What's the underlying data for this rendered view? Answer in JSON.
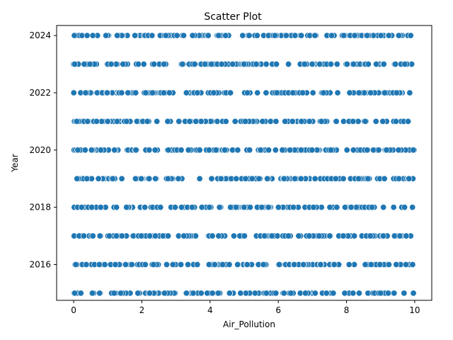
{
  "chart_data": {
    "type": "scatter",
    "title": "Scatter Plot",
    "xlabel": "Air_Pollution",
    "ylabel": "Year",
    "xlim": [
      -0.5,
      10.5
    ],
    "ylim": [
      2014.75,
      2024.35
    ],
    "xticks": [
      0,
      2,
      4,
      6,
      8,
      10
    ],
    "yticks": [
      2016,
      2018,
      2020,
      2022,
      2024
    ],
    "grid": false,
    "legend": "none",
    "color": "#1f77b4",
    "edgecolor": "#ffffff",
    "years": [
      2015,
      2016,
      2017,
      2018,
      2019,
      2020,
      2021,
      2022,
      2023,
      2024
    ],
    "x_min": 0,
    "x_max": 10,
    "points_per_year": 130
  }
}
